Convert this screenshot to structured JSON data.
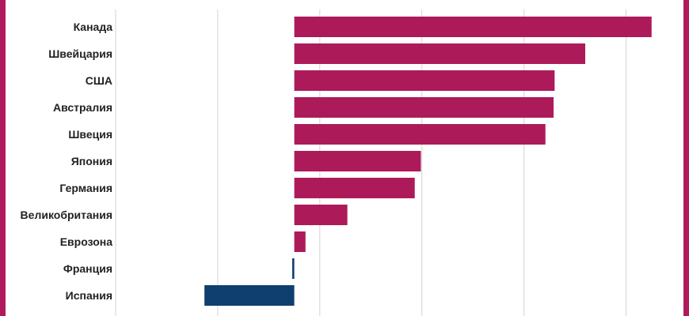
{
  "chart_data": {
    "type": "bar",
    "orientation": "horizontal",
    "categories": [
      "Канада",
      "Швейцария",
      "США",
      "Австралия",
      "Швеция",
      "Япония",
      "Германия",
      "Великобритания",
      "Еврозона",
      "Франция",
      "Испания"
    ],
    "values": [
      3.5,
      2.85,
      2.55,
      2.54,
      2.46,
      1.24,
      1.18,
      0.52,
      0.11,
      -0.02,
      -0.88
    ],
    "xlim": [
      -1.75,
      3.75
    ],
    "grid": true,
    "colors": {
      "positive": "#ad1a5a",
      "negative": "#0f3f6e",
      "gridline": "#d3d3d3",
      "frame": "#b01a5c"
    }
  }
}
